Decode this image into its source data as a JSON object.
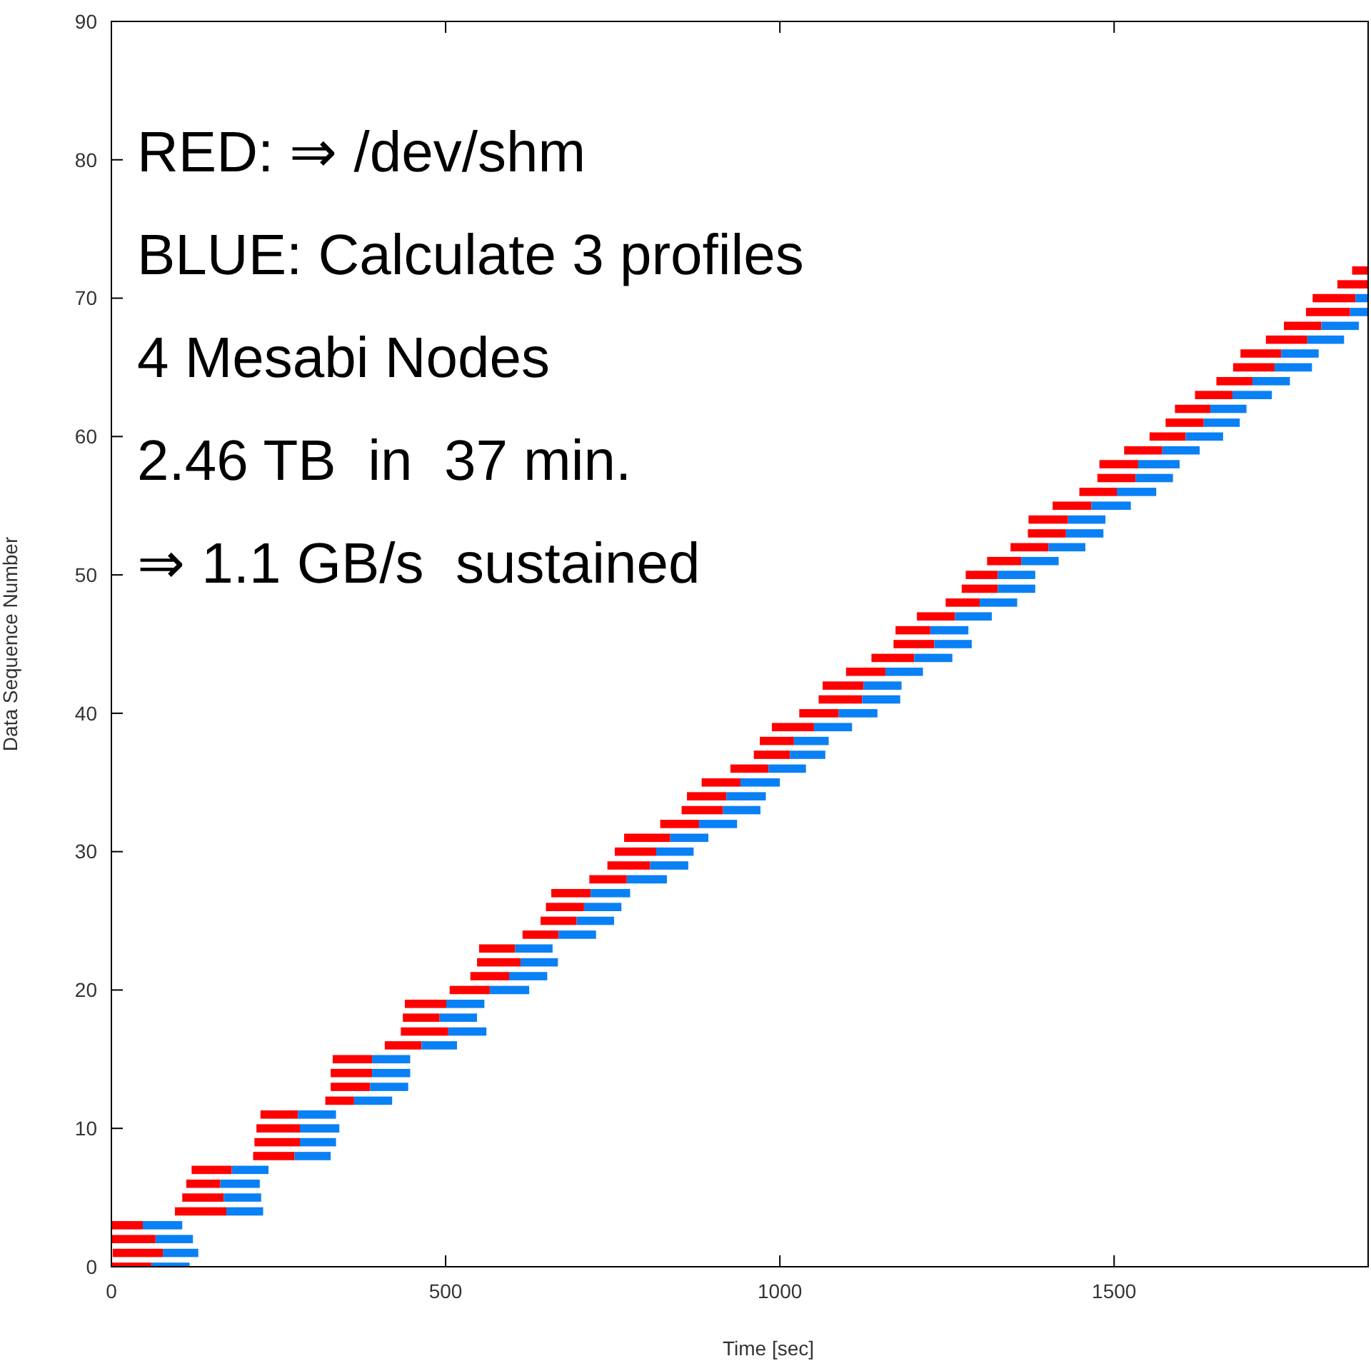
{
  "chart_data": {
    "type": "bar",
    "orientation": "horizontal",
    "xlabel": "Time [sec]",
    "ylabel": "Data Sequence Number",
    "annotations": [
      "RED: ⇒ /dev/shm",
      "BLUE: Calculate 3 profiles",
      "4 Mesabi Nodes",
      "2.46 TB  in  37 min.",
      "⇒ 1.1 GB/s  sustained"
    ],
    "xlim": [
      0,
      1880
    ],
    "xticks": [
      0,
      500,
      1000,
      1500
    ],
    "ylim": [
      0,
      90
    ],
    "yticks": [
      0,
      10,
      20,
      30,
      40,
      50,
      60,
      70,
      80,
      90
    ],
    "x": [
      0,
      1,
      2,
      3,
      4,
      5,
      6,
      7,
      8,
      9,
      10,
      11,
      12,
      13,
      14,
      15,
      16,
      17,
      18,
      19,
      20,
      21,
      22,
      23,
      24,
      25,
      26,
      27,
      28,
      29,
      30,
      31,
      32,
      33,
      34,
      35,
      36,
      37,
      38,
      39,
      40,
      41,
      42,
      43,
      44,
      45,
      46,
      47,
      48,
      49,
      50,
      51,
      52,
      53,
      54,
      55,
      56,
      57,
      58,
      59,
      60,
      61,
      62,
      63,
      64,
      65,
      66,
      67,
      68,
      69,
      70,
      71,
      72
    ],
    "series": [
      {
        "color": "#ff0000",
        "base": [
          0,
          2,
          0,
          0,
          95,
          106,
          112,
          120,
          212,
          214,
          217,
          223,
          320,
          328,
          328,
          331,
          409,
          433,
          436,
          439,
          506,
          537,
          547,
          550,
          615,
          642,
          650,
          658,
          715,
          742,
          753,
          767,
          821,
          853,
          861,
          883,
          926,
          961,
          970,
          988,
          1029,
          1058,
          1064,
          1099,
          1137,
          1170,
          1173,
          1205,
          1248,
          1272,
          1278,
          1310,
          1345,
          1371,
          1372,
          1408,
          1448,
          1475,
          1478,
          1515,
          1553,
          1577,
          1591,
          1621,
          1653,
          1678,
          1689,
          1727,
          1754,
          1787,
          1797,
          1834,
          1856
        ],
        "values": [
          60,
          75,
          66,
          47,
          77,
          62,
          51,
          60,
          62,
          68,
          65,
          56,
          43,
          59,
          62,
          59,
          55,
          71,
          55,
          62,
          60,
          58,
          65,
          54,
          54,
          54,
          57,
          59,
          56,
          64,
          62,
          69,
          58,
          62,
          59,
          58,
          57,
          54,
          51,
          63,
          59,
          65,
          61,
          59,
          64,
          61,
          52,
          57,
          51,
          54,
          48,
          51,
          57,
          57,
          59,
          58,
          56,
          57,
          58,
          57,
          54,
          57,
          53,
          56,
          54,
          62,
          61,
          62,
          56,
          66,
          64,
          46,
          24
        ]
      },
      {
        "color": "#0a80f5",
        "base": [
          60,
          77,
          66,
          47,
          172,
          168,
          163,
          180,
          274,
          282,
          282,
          279,
          363,
          387,
          390,
          390,
          464,
          504,
          491,
          501,
          566,
          595,
          612,
          604,
          669,
          696,
          707,
          717,
          771,
          806,
          815,
          836,
          879,
          915,
          920,
          941,
          983,
          1015,
          1021,
          1051,
          1088,
          1123,
          1125,
          1158,
          1201,
          1231,
          1225,
          1262,
          1299,
          1326,
          1326,
          1361,
          1402,
          1428,
          1431,
          1466,
          1504,
          1532,
          1536,
          1572,
          1607,
          1634,
          1644,
          1677,
          1707,
          1740,
          1750,
          1789,
          1810,
          1853,
          1861,
          null,
          null
        ],
        "values": [
          57,
          53,
          56,
          59,
          55,
          56,
          59,
          55,
          54,
          54,
          59,
          57,
          57,
          57,
          57,
          57,
          53,
          57,
          56,
          57,
          59,
          57,
          56,
          56,
          56,
          56,
          56,
          59,
          60,
          57,
          56,
          57,
          57,
          56,
          59,
          59,
          56,
          53,
          52,
          57,
          58,
          57,
          57,
          56,
          57,
          56,
          57,
          55,
          56,
          56,
          56,
          56,
          55,
          56,
          56,
          59,
          59,
          56,
          62,
          56,
          56,
          54,
          54,
          59,
          56,
          56,
          56,
          55,
          56,
          27,
          19,
          null,
          null
        ]
      }
    ]
  }
}
